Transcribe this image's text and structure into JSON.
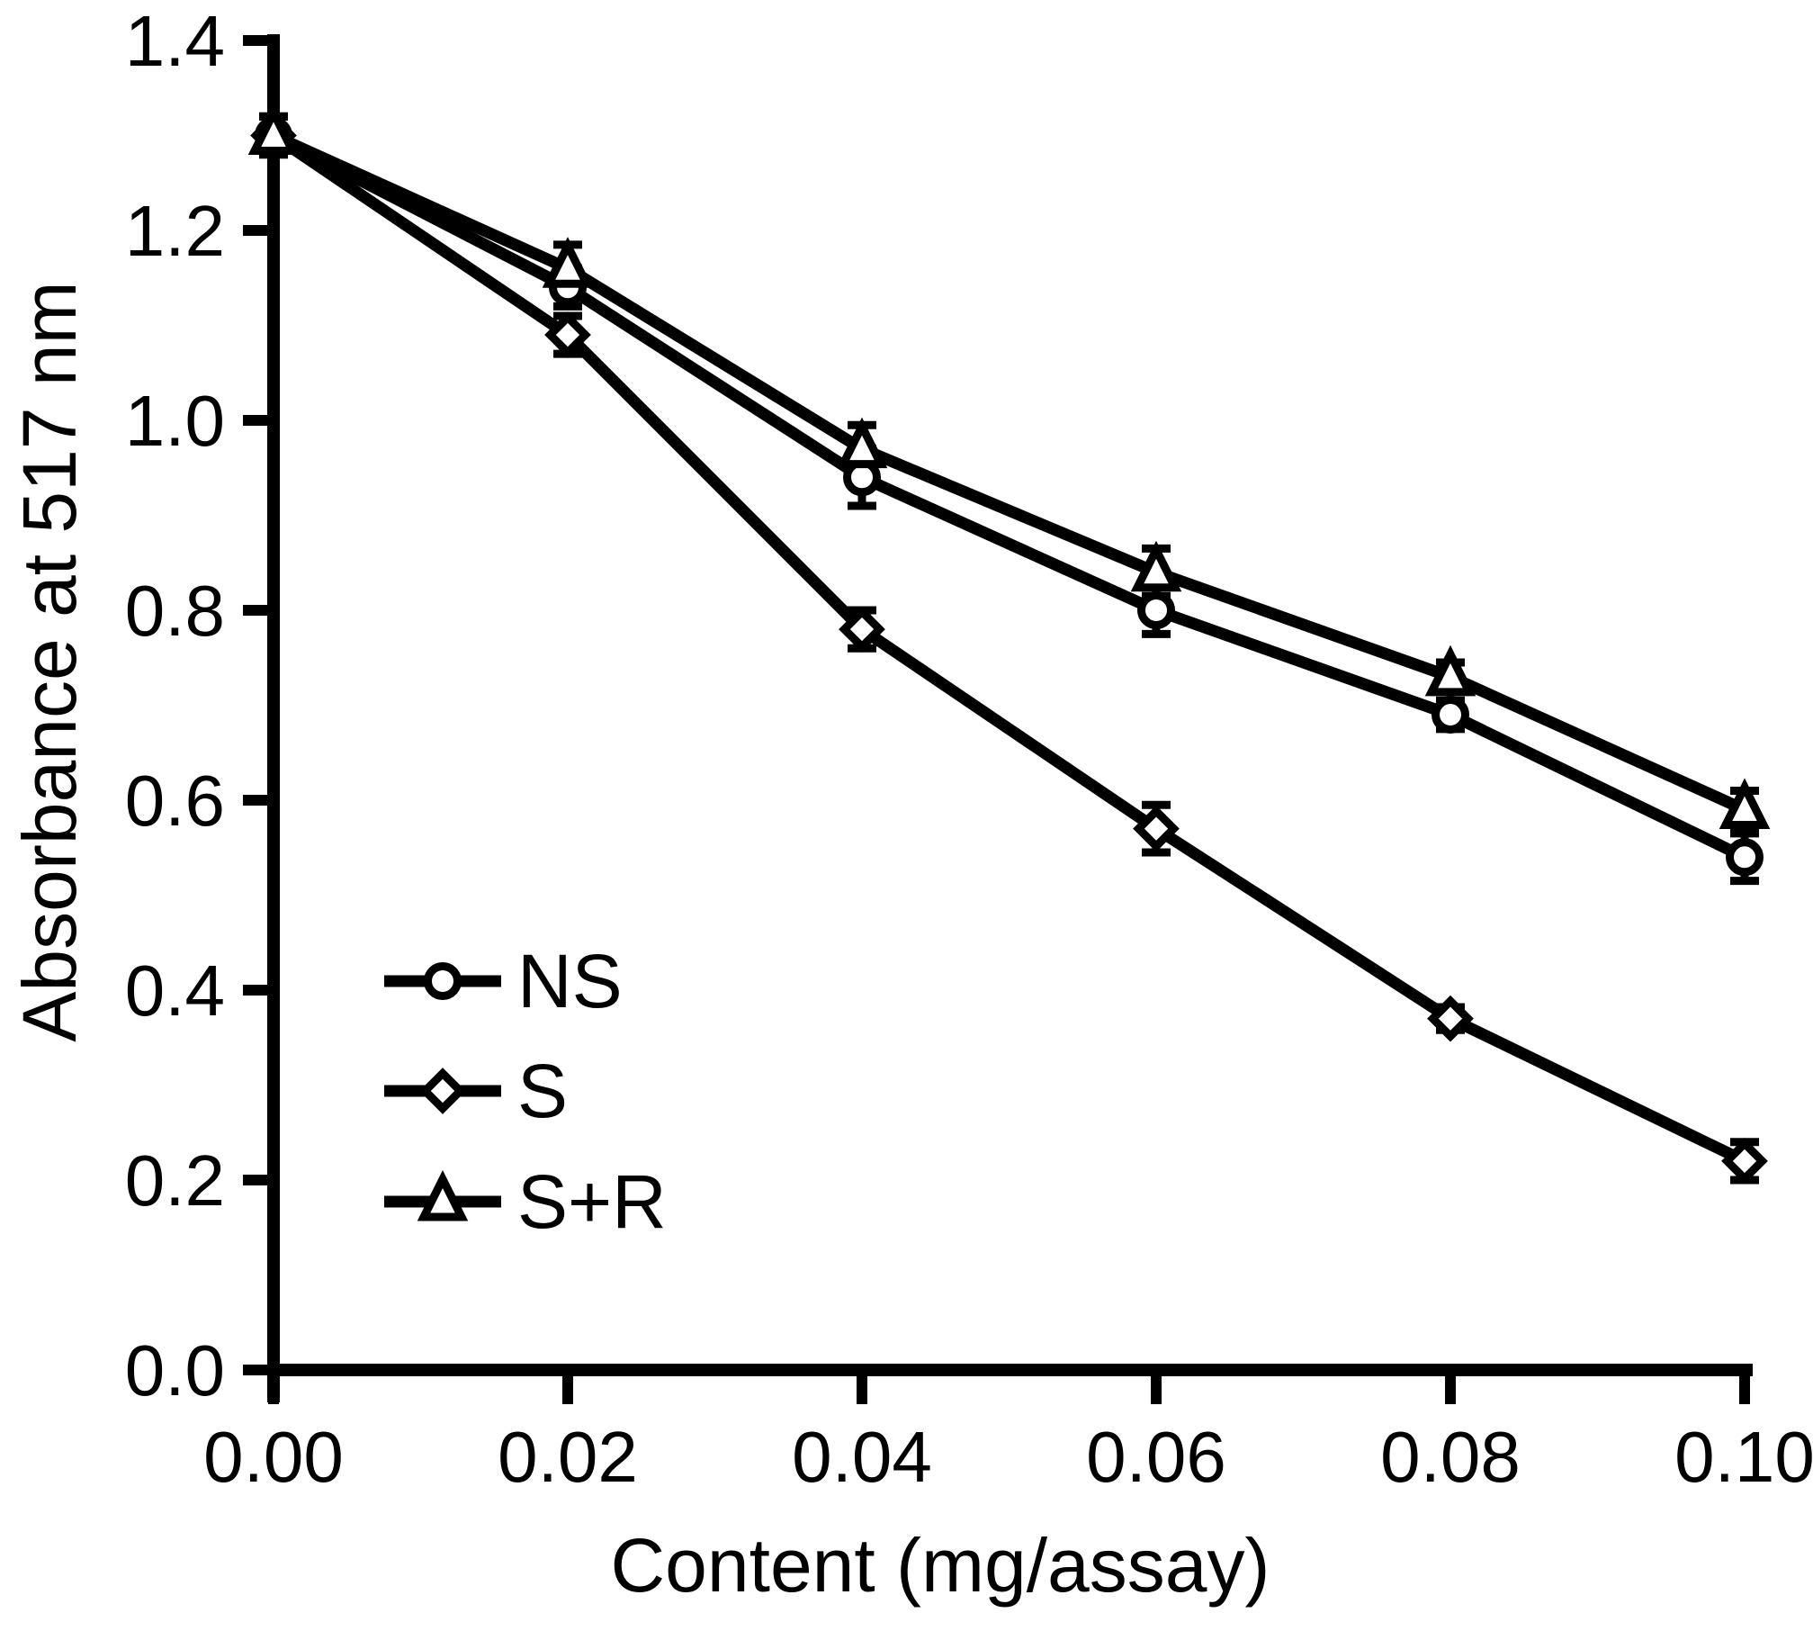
{
  "chart_data": {
    "type": "line",
    "title": "",
    "xlabel": "Content (mg/assay)",
    "ylabel": "Absorbance at 517 nm",
    "x": [
      0.0,
      0.02,
      0.04,
      0.06,
      0.08,
      0.1
    ],
    "x_tick_labels": [
      "0.00",
      "0.02",
      "0.04",
      "0.06",
      "0.08",
      "0.10"
    ],
    "y_ticks": [
      0.0,
      0.2,
      0.4,
      0.6,
      0.8,
      1.0,
      1.2,
      1.4
    ],
    "y_tick_labels": [
      "0.0",
      "0.2",
      "0.4",
      "0.6",
      "0.8",
      "1.0",
      "1.2",
      "1.4"
    ],
    "xlim": [
      0.0,
      0.1
    ],
    "ylim": [
      0.0,
      1.4
    ],
    "grid": false,
    "legend_position": "inside-lower-left",
    "line_color": "#000000",
    "background_color": "#ffffff",
    "series": [
      {
        "name": "NS",
        "marker": "circle",
        "values": [
          1.3,
          1.14,
          0.94,
          0.8,
          0.69,
          0.54
        ],
        "errors": [
          0.02,
          0.02,
          0.03,
          0.025,
          0.015,
          0.025
        ]
      },
      {
        "name": "S",
        "marker": "diamond",
        "values": [
          1.3,
          1.09,
          0.78,
          0.57,
          0.37,
          0.22
        ],
        "errors": [
          0.02,
          0.02,
          0.02,
          0.025,
          0.012,
          0.02
        ]
      },
      {
        "name": "S+R",
        "marker": "triangle",
        "values": [
          1.3,
          1.16,
          0.97,
          0.84,
          0.73,
          0.59
        ],
        "errors": [
          0.02,
          0.025,
          0.025,
          0.025,
          0.015,
          0.02
        ]
      }
    ]
  }
}
